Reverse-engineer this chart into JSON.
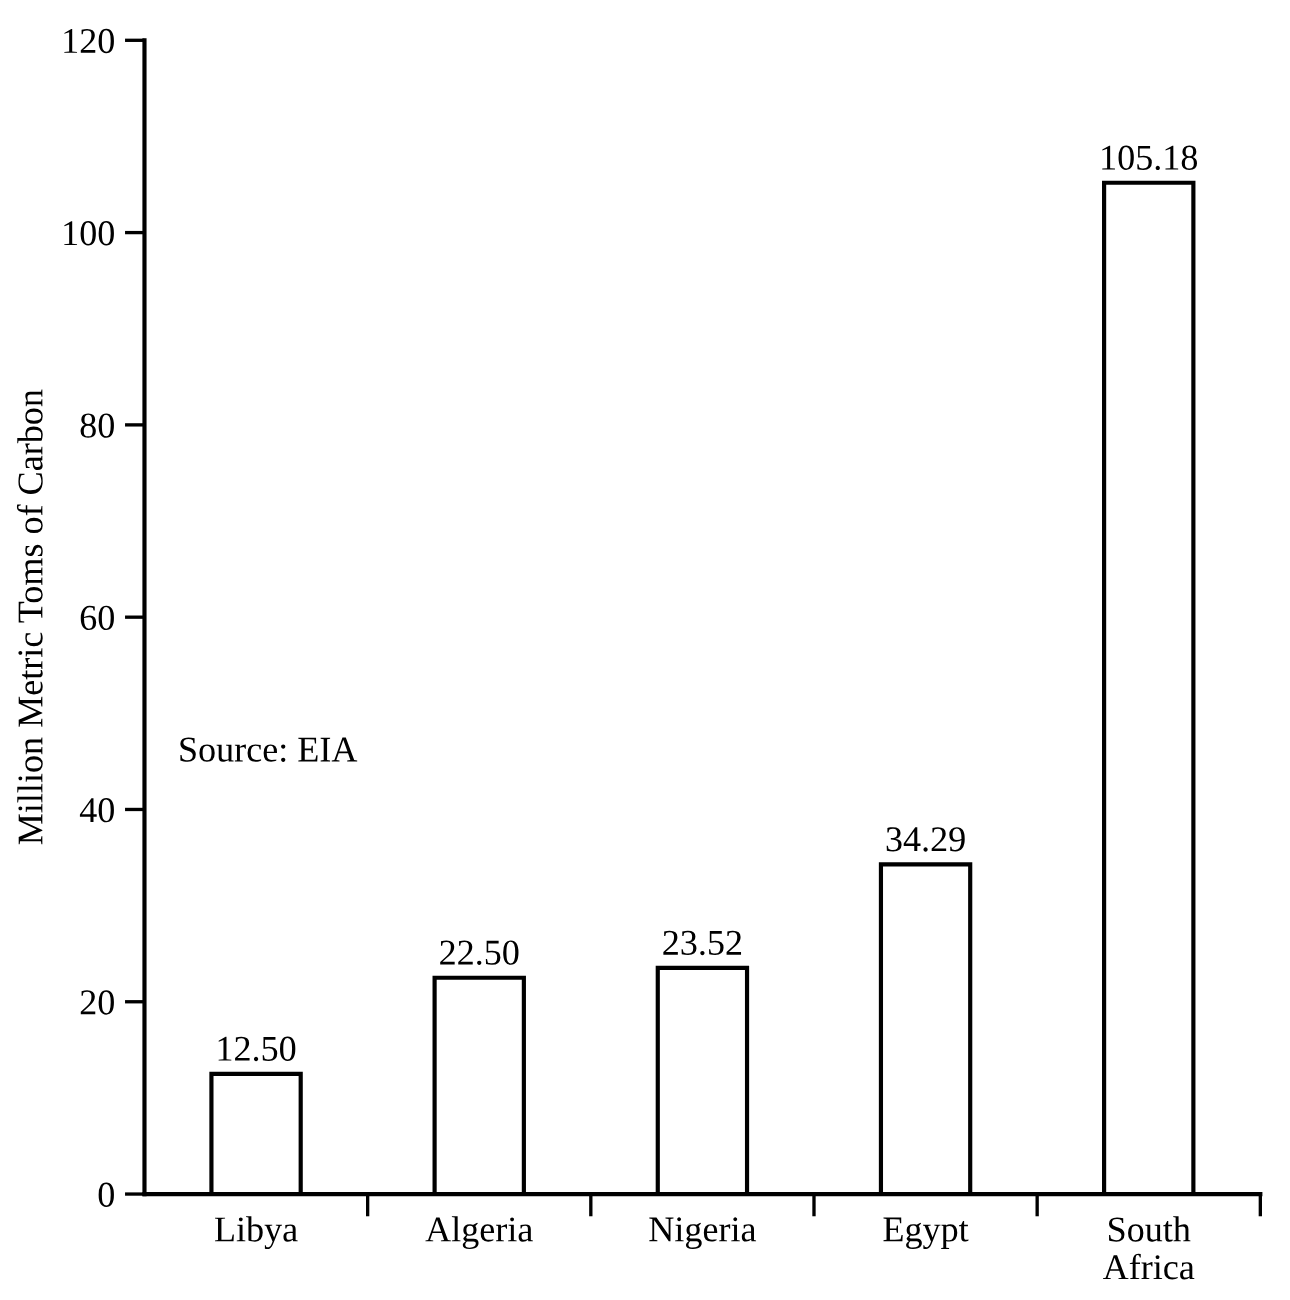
{
  "chart_data": {
    "type": "bar",
    "ylabel": "Million Metric Toms of Carbon",
    "categories": [
      "Libya",
      "Algeria",
      "Nigeria",
      "Egypt",
      "South\nAfrica"
    ],
    "values": [
      12.5,
      22.5,
      23.52,
      34.29,
      105.18
    ],
    "value_labels": [
      "12.50",
      "22.50",
      "23.52",
      "34.29",
      "105.18"
    ],
    "color": "#ffffff",
    "ylim": [
      0,
      120
    ],
    "yticks": [
      0,
      20,
      40,
      60,
      80,
      100,
      120
    ],
    "grid": false,
    "legend": false,
    "annotations": [
      "Source: EIA"
    ]
  }
}
